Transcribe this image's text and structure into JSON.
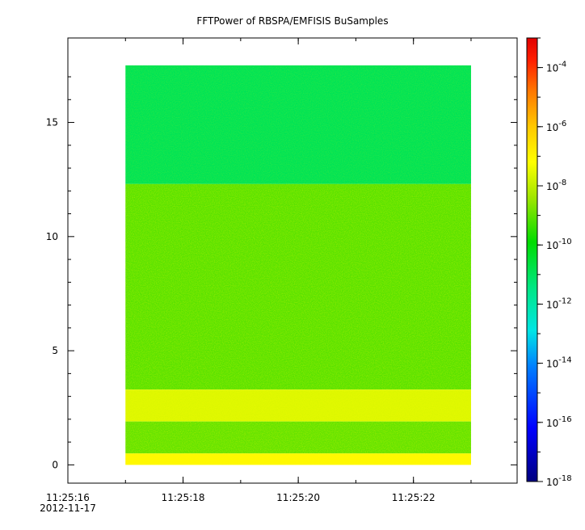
{
  "chart_data": {
    "type": "heatmap",
    "title": "FFTPower of RBSPA/EMFISIS  BuSamples",
    "xlabel": "",
    "ylabel": "",
    "x_axis": {
      "range_seconds": [
        "11:25:16",
        "11:25:23.8"
      ],
      "major_ticks": [
        {
          "label": "11:25:16",
          "sublabel": "2012-11-17"
        },
        {
          "label": "11:25:18",
          "sublabel": ""
        },
        {
          "label": "11:25:20",
          "sublabel": ""
        },
        {
          "label": "11:25:22",
          "sublabel": ""
        }
      ]
    },
    "y_axis": {
      "ylim": [
        -0.8,
        18.7
      ],
      "ticks": [
        {
          "value": 0,
          "label": "0"
        },
        {
          "value": 5,
          "label": "5"
        },
        {
          "value": 10,
          "label": "10"
        },
        {
          "value": 15,
          "label": "15"
        }
      ]
    },
    "data_extent": {
      "x_start": "11:25:17",
      "x_end": "11:25:23",
      "y_min": 0,
      "y_max": 17.5
    },
    "colorbar": {
      "scale": "log",
      "range": [
        "1e-18",
        "1e-3"
      ],
      "ticks": [
        {
          "mant": "10",
          "exp": "-4",
          "value": -4
        },
        {
          "mant": "10",
          "exp": "-6",
          "value": -6
        },
        {
          "mant": "10",
          "exp": "-8",
          "value": -8
        },
        {
          "mant": "10",
          "exp": "-10",
          "value": -10
        },
        {
          "mant": "10",
          "exp": "-12",
          "value": -12
        },
        {
          "mant": "10",
          "exp": "-14",
          "value": -14
        },
        {
          "mant": "10",
          "exp": "-16",
          "value": -16
        },
        {
          "mant": "10",
          "exp": "-18",
          "value": -18
        }
      ]
    },
    "bands": [
      {
        "y_from": 12.3,
        "y_to": 17.5,
        "level": -12.5
      },
      {
        "y_from": 3.3,
        "y_to": 12.3,
        "level": -10.6
      },
      {
        "y_from": 1.9,
        "y_to": 3.3,
        "level": -9.0
      },
      {
        "y_from": 0.5,
        "y_to": 1.9,
        "level": -10.5
      },
      {
        "y_from": 0.0,
        "y_to": 0.5,
        "level": -8.3
      }
    ]
  }
}
